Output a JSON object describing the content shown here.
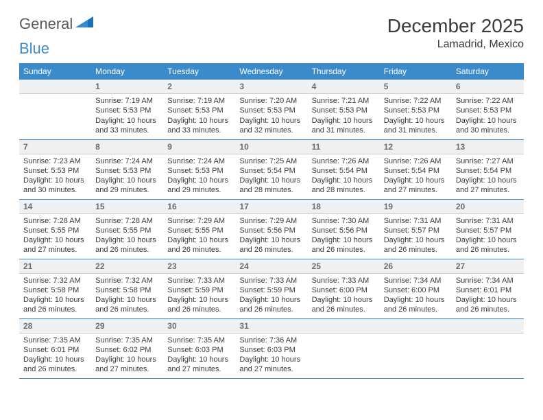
{
  "logo": {
    "part1": "General",
    "part2": "Blue"
  },
  "header": {
    "month_title": "December 2025",
    "location": "Lamadrid, Mexico"
  },
  "day_headers": [
    "Sunday",
    "Monday",
    "Tuesday",
    "Wednesday",
    "Thursday",
    "Friday",
    "Saturday"
  ],
  "colors": {
    "accent": "#3b8bcb",
    "daynum_bg": "#eef0f1",
    "text": "#3a3a3a",
    "muted": "#6c6c6c"
  },
  "weeks": [
    [
      {
        "n": "",
        "sr": "",
        "ss": "",
        "dl": ""
      },
      {
        "n": "1",
        "sr": "Sunrise: 7:19 AM",
        "ss": "Sunset: 5:53 PM",
        "dl": "Daylight: 10 hours and 33 minutes."
      },
      {
        "n": "2",
        "sr": "Sunrise: 7:19 AM",
        "ss": "Sunset: 5:53 PM",
        "dl": "Daylight: 10 hours and 33 minutes."
      },
      {
        "n": "3",
        "sr": "Sunrise: 7:20 AM",
        "ss": "Sunset: 5:53 PM",
        "dl": "Daylight: 10 hours and 32 minutes."
      },
      {
        "n": "4",
        "sr": "Sunrise: 7:21 AM",
        "ss": "Sunset: 5:53 PM",
        "dl": "Daylight: 10 hours and 31 minutes."
      },
      {
        "n": "5",
        "sr": "Sunrise: 7:22 AM",
        "ss": "Sunset: 5:53 PM",
        "dl": "Daylight: 10 hours and 31 minutes."
      },
      {
        "n": "6",
        "sr": "Sunrise: 7:22 AM",
        "ss": "Sunset: 5:53 PM",
        "dl": "Daylight: 10 hours and 30 minutes."
      }
    ],
    [
      {
        "n": "7",
        "sr": "Sunrise: 7:23 AM",
        "ss": "Sunset: 5:53 PM",
        "dl": "Daylight: 10 hours and 30 minutes."
      },
      {
        "n": "8",
        "sr": "Sunrise: 7:24 AM",
        "ss": "Sunset: 5:53 PM",
        "dl": "Daylight: 10 hours and 29 minutes."
      },
      {
        "n": "9",
        "sr": "Sunrise: 7:24 AM",
        "ss": "Sunset: 5:53 PM",
        "dl": "Daylight: 10 hours and 29 minutes."
      },
      {
        "n": "10",
        "sr": "Sunrise: 7:25 AM",
        "ss": "Sunset: 5:54 PM",
        "dl": "Daylight: 10 hours and 28 minutes."
      },
      {
        "n": "11",
        "sr": "Sunrise: 7:26 AM",
        "ss": "Sunset: 5:54 PM",
        "dl": "Daylight: 10 hours and 28 minutes."
      },
      {
        "n": "12",
        "sr": "Sunrise: 7:26 AM",
        "ss": "Sunset: 5:54 PM",
        "dl": "Daylight: 10 hours and 27 minutes."
      },
      {
        "n": "13",
        "sr": "Sunrise: 7:27 AM",
        "ss": "Sunset: 5:54 PM",
        "dl": "Daylight: 10 hours and 27 minutes."
      }
    ],
    [
      {
        "n": "14",
        "sr": "Sunrise: 7:28 AM",
        "ss": "Sunset: 5:55 PM",
        "dl": "Daylight: 10 hours and 27 minutes."
      },
      {
        "n": "15",
        "sr": "Sunrise: 7:28 AM",
        "ss": "Sunset: 5:55 PM",
        "dl": "Daylight: 10 hours and 26 minutes."
      },
      {
        "n": "16",
        "sr": "Sunrise: 7:29 AM",
        "ss": "Sunset: 5:55 PM",
        "dl": "Daylight: 10 hours and 26 minutes."
      },
      {
        "n": "17",
        "sr": "Sunrise: 7:29 AM",
        "ss": "Sunset: 5:56 PM",
        "dl": "Daylight: 10 hours and 26 minutes."
      },
      {
        "n": "18",
        "sr": "Sunrise: 7:30 AM",
        "ss": "Sunset: 5:56 PM",
        "dl": "Daylight: 10 hours and 26 minutes."
      },
      {
        "n": "19",
        "sr": "Sunrise: 7:31 AM",
        "ss": "Sunset: 5:57 PM",
        "dl": "Daylight: 10 hours and 26 minutes."
      },
      {
        "n": "20",
        "sr": "Sunrise: 7:31 AM",
        "ss": "Sunset: 5:57 PM",
        "dl": "Daylight: 10 hours and 26 minutes."
      }
    ],
    [
      {
        "n": "21",
        "sr": "Sunrise: 7:32 AM",
        "ss": "Sunset: 5:58 PM",
        "dl": "Daylight: 10 hours and 26 minutes."
      },
      {
        "n": "22",
        "sr": "Sunrise: 7:32 AM",
        "ss": "Sunset: 5:58 PM",
        "dl": "Daylight: 10 hours and 26 minutes."
      },
      {
        "n": "23",
        "sr": "Sunrise: 7:33 AM",
        "ss": "Sunset: 5:59 PM",
        "dl": "Daylight: 10 hours and 26 minutes."
      },
      {
        "n": "24",
        "sr": "Sunrise: 7:33 AM",
        "ss": "Sunset: 5:59 PM",
        "dl": "Daylight: 10 hours and 26 minutes."
      },
      {
        "n": "25",
        "sr": "Sunrise: 7:33 AM",
        "ss": "Sunset: 6:00 PM",
        "dl": "Daylight: 10 hours and 26 minutes."
      },
      {
        "n": "26",
        "sr": "Sunrise: 7:34 AM",
        "ss": "Sunset: 6:00 PM",
        "dl": "Daylight: 10 hours and 26 minutes."
      },
      {
        "n": "27",
        "sr": "Sunrise: 7:34 AM",
        "ss": "Sunset: 6:01 PM",
        "dl": "Daylight: 10 hours and 26 minutes."
      }
    ],
    [
      {
        "n": "28",
        "sr": "Sunrise: 7:35 AM",
        "ss": "Sunset: 6:01 PM",
        "dl": "Daylight: 10 hours and 26 minutes."
      },
      {
        "n": "29",
        "sr": "Sunrise: 7:35 AM",
        "ss": "Sunset: 6:02 PM",
        "dl": "Daylight: 10 hours and 27 minutes."
      },
      {
        "n": "30",
        "sr": "Sunrise: 7:35 AM",
        "ss": "Sunset: 6:03 PM",
        "dl": "Daylight: 10 hours and 27 minutes."
      },
      {
        "n": "31",
        "sr": "Sunrise: 7:36 AM",
        "ss": "Sunset: 6:03 PM",
        "dl": "Daylight: 10 hours and 27 minutes."
      },
      {
        "n": "",
        "sr": "",
        "ss": "",
        "dl": ""
      },
      {
        "n": "",
        "sr": "",
        "ss": "",
        "dl": ""
      },
      {
        "n": "",
        "sr": "",
        "ss": "",
        "dl": ""
      }
    ]
  ]
}
